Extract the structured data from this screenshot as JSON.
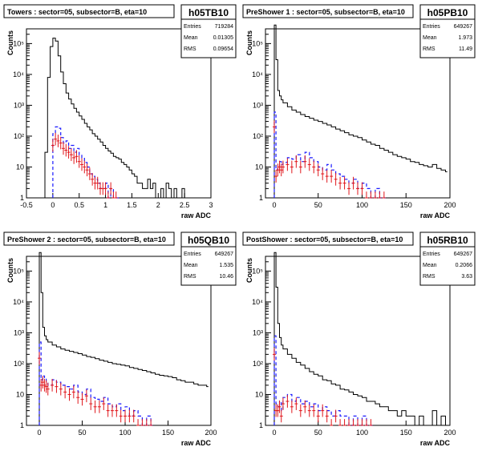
{
  "chart_data": [
    {
      "type": "histogram",
      "title": "Towers : sector=05, subsector=B, eta=10",
      "stats": {
        "name": "h05TB10",
        "entries_label": "Entries",
        "entries": "719284",
        "mean_label": "Mean",
        "mean": "0.01305",
        "rms_label": "RMS",
        "rms": "0.09654"
      },
      "xlabel": "raw ADC",
      "ylabel": "Counts",
      "xlim": [
        -0.5,
        3
      ],
      "ylim": [
        1,
        300000
      ],
      "yscale": "log",
      "xticks": [
        "-0.5",
        "0",
        "0.5",
        "1",
        "1.5",
        "2",
        "2.5",
        "3"
      ],
      "xtick_values": [
        -0.5,
        0,
        0.5,
        1,
        1.5,
        2,
        2.5,
        3
      ],
      "yticks": [
        "1",
        "10",
        "10²",
        "10³",
        "10⁴",
        "10⁵"
      ],
      "ytick_values": [
        1,
        10,
        100,
        1000,
        10000,
        100000
      ],
      "series": [
        {
          "style": "black-step",
          "x": [
            -0.2,
            -0.15,
            -0.1,
            -0.05,
            0,
            0.05,
            0.1,
            0.15,
            0.2,
            0.25,
            0.3,
            0.35,
            0.4,
            0.45,
            0.5,
            0.55,
            0.6,
            0.65,
            0.7,
            0.75,
            0.8,
            0.85,
            0.9,
            0.95,
            1,
            1.05,
            1.1,
            1.15,
            1.2,
            1.25,
            1.3,
            1.35,
            1.4,
            1.45,
            1.5,
            1.55,
            1.6,
            1.65,
            1.7,
            1.75,
            1.8,
            1.85,
            1.9,
            1.95,
            2,
            2.05,
            2.1,
            2.15,
            2.2,
            2.25,
            2.3,
            2.35,
            2.4,
            2.45,
            2.5,
            2.55,
            2.6
          ],
          "y": [
            1,
            30,
            8000,
            80000,
            150000,
            120000,
            40000,
            12000,
            5000,
            2500,
            1600,
            1100,
            800,
            600,
            450,
            350,
            260,
            200,
            160,
            120,
            100,
            80,
            65,
            50,
            40,
            33,
            28,
            22,
            20,
            18,
            14,
            12,
            10,
            8,
            6,
            5,
            3,
            3,
            2,
            2,
            4,
            2,
            3,
            1,
            1,
            2,
            1,
            3,
            2,
            1,
            2,
            1,
            1,
            2,
            1,
            1,
            1
          ]
        },
        {
          "style": "blue-dashed",
          "x": [
            0,
            0.05,
            0.1,
            0.15,
            0.2,
            0.25,
            0.3,
            0.35,
            0.4,
            0.45,
            0.5,
            0.55,
            0.6,
            0.65,
            0.7,
            0.75,
            0.8,
            0.85,
            0.9,
            0.95,
            1,
            1.05,
            1.1,
            1.15,
            1.2
          ],
          "y": [
            120,
            200,
            180,
            90,
            60,
            70,
            40,
            50,
            30,
            40,
            25,
            20,
            14,
            10,
            6,
            5,
            4,
            3,
            2,
            2,
            3,
            1,
            2,
            1,
            1
          ]
        },
        {
          "style": "red-errorbars",
          "x": [
            0,
            0.05,
            0.1,
            0.15,
            0.2,
            0.25,
            0.3,
            0.35,
            0.4,
            0.45,
            0.5,
            0.55,
            0.6,
            0.65,
            0.7,
            0.75,
            0.8,
            0.85,
            0.9,
            0.95,
            1,
            1.05,
            1.1,
            1.15,
            1.2
          ],
          "y": [
            50,
            80,
            70,
            60,
            40,
            35,
            30,
            25,
            20,
            22,
            15,
            12,
            10,
            8,
            6,
            4,
            3,
            3,
            2,
            2,
            2,
            1,
            2,
            1,
            1
          ]
        }
      ]
    },
    {
      "type": "histogram",
      "title": "PreShower 1 : sector=05, subsector=B, eta=10",
      "stats": {
        "name": "h05PB10",
        "entries_label": "Entries",
        "entries": "649267",
        "mean_label": "Mean",
        "mean": "1.973",
        "rms_label": "RMS",
        "rms": "11.49"
      },
      "xlabel": "raw ADC",
      "ylabel": "Counts",
      "xlim": [
        -10,
        200
      ],
      "ylim": [
        1,
        300000
      ],
      "yscale": "log",
      "xticks": [
        "0",
        "50",
        "100",
        "150",
        "200"
      ],
      "xtick_values": [
        0,
        50,
        100,
        150,
        200
      ],
      "yticks": [
        "1",
        "10",
        "10²",
        "10³",
        "10⁴",
        "10⁵"
      ],
      "ytick_values": [
        1,
        10,
        100,
        1000,
        10000,
        100000
      ],
      "series": [
        {
          "style": "black-step",
          "x": [
            -2,
            0,
            2,
            4,
            6,
            8,
            10,
            15,
            20,
            25,
            30,
            35,
            40,
            45,
            50,
            55,
            60,
            65,
            70,
            75,
            80,
            85,
            90,
            95,
            100,
            105,
            110,
            115,
            120,
            125,
            130,
            135,
            140,
            145,
            150,
            155,
            160,
            165,
            170,
            175,
            180,
            185,
            190,
            195
          ],
          "y": [
            1,
            400000,
            30000,
            3000,
            2000,
            1500,
            1200,
            900,
            700,
            600,
            500,
            430,
            380,
            330,
            300,
            260,
            230,
            200,
            170,
            150,
            130,
            110,
            100,
            90,
            75,
            65,
            55,
            50,
            40,
            35,
            30,
            25,
            22,
            20,
            18,
            15,
            14,
            12,
            11,
            10,
            12,
            9,
            8,
            7
          ]
        },
        {
          "style": "blue-dashed",
          "x": [
            0,
            2,
            4,
            6,
            8,
            10,
            15,
            20,
            25,
            30,
            35,
            40,
            45,
            50,
            55,
            60,
            65,
            70,
            75,
            80,
            85,
            90,
            95,
            100,
            105,
            110,
            115,
            120,
            125
          ],
          "y": [
            600,
            8,
            10,
            15,
            12,
            14,
            20,
            18,
            25,
            15,
            30,
            20,
            15,
            10,
            8,
            12,
            8,
            6,
            5,
            4,
            3,
            4,
            2,
            3,
            2,
            1,
            2,
            1,
            1
          ]
        },
        {
          "style": "red-errorbars",
          "x": [
            0,
            2,
            4,
            6,
            8,
            10,
            15,
            20,
            25,
            30,
            35,
            40,
            45,
            50,
            55,
            60,
            65,
            70,
            75,
            80,
            85,
            90,
            95,
            100,
            105,
            110,
            115,
            120,
            125
          ],
          "y": [
            200,
            5,
            8,
            10,
            8,
            10,
            12,
            10,
            15,
            10,
            15,
            12,
            10,
            8,
            6,
            5,
            5,
            4,
            3,
            3,
            2,
            3,
            2,
            2,
            1,
            1,
            1,
            1,
            1
          ]
        }
      ]
    },
    {
      "type": "histogram",
      "title": "PreShower 2 : sector=05, subsector=B, eta=10",
      "stats": {
        "name": "h05QB10",
        "entries_label": "Entries",
        "entries": "649267",
        "mean_label": "Mean",
        "mean": "1.535",
        "rms_label": "RMS",
        "rms": "10.46"
      },
      "xlabel": "raw ADC",
      "ylabel": "Counts",
      "xlim": [
        -15,
        200
      ],
      "ylim": [
        1,
        300000
      ],
      "yscale": "log",
      "xticks": [
        "0",
        "50",
        "100",
        "150",
        "200"
      ],
      "xtick_values": [
        0,
        50,
        100,
        150,
        200
      ],
      "yticks": [
        "1",
        "10",
        "10²",
        "10³",
        "10⁴",
        "10⁵"
      ],
      "ytick_values": [
        1,
        10,
        100,
        1000,
        10000,
        100000
      ],
      "series": [
        {
          "style": "black-step",
          "x": [
            -2,
            0,
            2,
            4,
            6,
            8,
            10,
            15,
            20,
            25,
            30,
            35,
            40,
            45,
            50,
            55,
            60,
            65,
            70,
            75,
            80,
            85,
            90,
            95,
            100,
            105,
            110,
            115,
            120,
            125,
            130,
            135,
            140,
            145,
            150,
            155,
            160,
            165,
            170,
            175,
            180,
            185,
            190,
            195
          ],
          "y": [
            1,
            400000,
            20000,
            1500,
            800,
            600,
            500,
            400,
            350,
            300,
            270,
            250,
            230,
            210,
            190,
            170,
            160,
            145,
            130,
            120,
            110,
            100,
            95,
            90,
            85,
            75,
            70,
            65,
            60,
            55,
            50,
            45,
            42,
            40,
            38,
            35,
            30,
            28,
            25,
            25,
            22,
            20,
            20,
            18
          ]
        },
        {
          "style": "blue-dashed",
          "x": [
            0,
            2,
            4,
            6,
            8,
            10,
            15,
            20,
            25,
            30,
            35,
            40,
            45,
            50,
            55,
            60,
            65,
            70,
            75,
            80,
            85,
            90,
            95,
            100,
            105,
            110,
            115,
            120,
            125,
            130
          ],
          "y": [
            500,
            30,
            40,
            35,
            25,
            20,
            30,
            25,
            20,
            18,
            15,
            20,
            12,
            10,
            15,
            8,
            7,
            6,
            8,
            5,
            4,
            5,
            3,
            4,
            2,
            3,
            2,
            1,
            2,
            1
          ]
        },
        {
          "style": "red-errorbars",
          "x": [
            0,
            2,
            4,
            6,
            8,
            10,
            15,
            20,
            25,
            30,
            35,
            40,
            45,
            50,
            55,
            60,
            65,
            70,
            75,
            80,
            85,
            90,
            95,
            100,
            105,
            110,
            115,
            120,
            125,
            130
          ],
          "y": [
            150,
            20,
            25,
            20,
            18,
            15,
            20,
            18,
            15,
            12,
            10,
            12,
            8,
            7,
            9,
            5,
            4,
            4,
            5,
            3,
            3,
            3,
            2,
            2,
            2,
            2,
            1,
            1,
            1,
            1
          ]
        }
      ]
    },
    {
      "type": "histogram",
      "title": "PostShower : sector=05, subsector=B, eta=10",
      "stats": {
        "name": "h05RB10",
        "entries_label": "Entries",
        "entries": "649267",
        "mean_label": "Mean",
        "mean": "0.2066",
        "rms_label": "RMS",
        "rms": "3.63"
      },
      "xlabel": "raw ADC",
      "ylabel": "Counts",
      "xlim": [
        -10,
        200
      ],
      "ylim": [
        1,
        300000
      ],
      "yscale": "log",
      "xticks": [
        "0",
        "50",
        "100",
        "150",
        "200"
      ],
      "xtick_values": [
        0,
        50,
        100,
        150,
        200
      ],
      "yticks": [
        "1",
        "10",
        "10²",
        "10³",
        "10⁴",
        "10⁵"
      ],
      "ytick_values": [
        1,
        10,
        100,
        1000,
        10000,
        100000
      ],
      "series": [
        {
          "style": "black-step",
          "x": [
            -2,
            0,
            2,
            4,
            6,
            8,
            10,
            15,
            20,
            25,
            30,
            35,
            40,
            45,
            50,
            55,
            60,
            65,
            70,
            75,
            80,
            85,
            90,
            95,
            100,
            105,
            110,
            115,
            120,
            125,
            130,
            135,
            140,
            145,
            150,
            155,
            160,
            165,
            170,
            175,
            180,
            185,
            190,
            195
          ],
          "y": [
            1,
            400000,
            30000,
            2000,
            700,
            400,
            300,
            200,
            150,
            110,
            90,
            70,
            55,
            45,
            40,
            30,
            28,
            22,
            20,
            15,
            14,
            12,
            10,
            9,
            8,
            6,
            6,
            5,
            4,
            4,
            3,
            3,
            2,
            3,
            2,
            2,
            1,
            2,
            1,
            1,
            3,
            1,
            2,
            1
          ]
        },
        {
          "style": "blue-dashed",
          "x": [
            0,
            2,
            4,
            6,
            8,
            10,
            15,
            20,
            25,
            30,
            35,
            40,
            45,
            50,
            55,
            60,
            65,
            70,
            75,
            80,
            85,
            90,
            95,
            100,
            105,
            110
          ],
          "y": [
            800,
            5,
            4,
            6,
            3,
            8,
            10,
            6,
            8,
            5,
            6,
            4,
            5,
            3,
            4,
            3,
            2,
            3,
            2,
            2,
            1,
            2,
            1,
            2,
            1,
            1
          ]
        },
        {
          "style": "red-errorbars",
          "x": [
            0,
            2,
            4,
            6,
            8,
            10,
            15,
            20,
            25,
            30,
            35,
            40,
            45,
            50,
            55,
            60,
            65,
            70,
            75,
            80,
            85,
            90,
            95,
            100,
            105,
            110
          ],
          "y": [
            200,
            3,
            3,
            4,
            2,
            5,
            6,
            4,
            5,
            3,
            4,
            3,
            3,
            2,
            3,
            2,
            1,
            2,
            1,
            1,
            1,
            1,
            1,
            1,
            1,
            1
          ]
        }
      ]
    }
  ]
}
